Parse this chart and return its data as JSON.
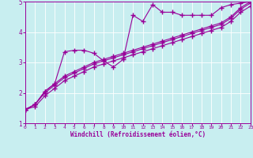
{
  "title": "",
  "xlabel": "Windchill (Refroidissement éolien,°C)",
  "ylabel": "",
  "background_color": "#c8eef0",
  "line_color": "#990099",
  "xlim": [
    0,
    23
  ],
  "ylim": [
    1,
    5
  ],
  "x_ticks": [
    0,
    1,
    2,
    3,
    4,
    5,
    6,
    7,
    8,
    9,
    10,
    11,
    12,
    13,
    14,
    15,
    16,
    17,
    18,
    19,
    20,
    21,
    22,
    23
  ],
  "y_ticks": [
    1,
    2,
    3,
    4,
    5
  ],
  "series1_x": [
    0,
    1,
    2,
    3,
    4,
    5,
    6,
    7,
    8,
    9,
    10,
    11,
    12,
    13,
    14,
    15,
    16,
    17,
    18,
    19,
    20,
    21,
    22,
    23
  ],
  "series1_y": [
    1.45,
    1.62,
    2.05,
    2.3,
    3.35,
    3.4,
    3.4,
    3.3,
    3.05,
    2.85,
    3.1,
    4.55,
    4.35,
    4.9,
    4.65,
    4.65,
    4.55,
    4.55,
    4.55,
    4.55,
    4.8,
    4.9,
    4.95,
    5.0
  ],
  "series2_x": [
    0,
    1,
    2,
    3,
    4,
    5,
    6,
    7,
    8,
    9,
    10,
    11,
    12,
    13,
    14,
    15,
    16,
    17,
    18,
    19,
    20,
    21,
    22,
    23
  ],
  "series2_y": [
    1.45,
    1.62,
    2.05,
    2.3,
    2.55,
    2.7,
    2.85,
    3.0,
    3.1,
    3.2,
    3.3,
    3.4,
    3.5,
    3.6,
    3.7,
    3.8,
    3.9,
    4.0,
    4.1,
    4.2,
    4.3,
    4.5,
    4.8,
    5.0
  ],
  "series3_x": [
    0,
    1,
    2,
    3,
    4,
    5,
    6,
    7,
    8,
    9,
    10,
    11,
    12,
    13,
    14,
    15,
    16,
    17,
    18,
    19,
    20,
    21,
    22,
    23
  ],
  "series3_y": [
    1.45,
    1.62,
    2.0,
    2.25,
    2.5,
    2.65,
    2.8,
    2.95,
    3.05,
    3.15,
    3.25,
    3.35,
    3.45,
    3.55,
    3.65,
    3.75,
    3.85,
    3.95,
    4.05,
    4.15,
    4.25,
    4.45,
    4.75,
    4.95
  ],
  "series4_x": [
    0,
    1,
    2,
    3,
    4,
    5,
    6,
    7,
    8,
    9,
    10,
    11,
    12,
    13,
    14,
    15,
    16,
    17,
    18,
    19,
    20,
    21,
    22,
    23
  ],
  "series4_y": [
    1.45,
    1.55,
    1.9,
    2.15,
    2.4,
    2.55,
    2.7,
    2.85,
    2.95,
    3.05,
    3.15,
    3.25,
    3.35,
    3.45,
    3.55,
    3.65,
    3.75,
    3.85,
    3.95,
    4.05,
    4.15,
    4.35,
    4.65,
    4.85
  ]
}
